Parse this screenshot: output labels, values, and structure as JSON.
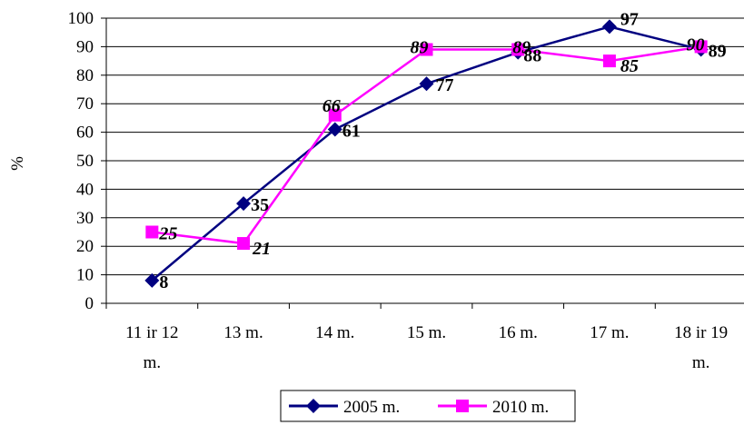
{
  "chart_data": {
    "type": "line",
    "title": "",
    "ylabel": "%",
    "xlabel": "",
    "ylim": [
      0,
      100
    ],
    "yticks": [
      0,
      10,
      20,
      30,
      40,
      50,
      60,
      70,
      80,
      90,
      100
    ],
    "categories": [
      [
        "11 ir 12",
        "m."
      ],
      [
        "13 m."
      ],
      [
        "14 m."
      ],
      [
        "15 m."
      ],
      [
        "16 m."
      ],
      [
        "17 m."
      ],
      [
        "18 ir 19",
        "m."
      ]
    ],
    "series": [
      {
        "name": "2005 m.",
        "values": [
          8,
          35,
          61,
          77,
          88,
          97,
          89
        ],
        "color": "#000080",
        "marker": "diamond",
        "label_style": "bold"
      },
      {
        "name": "2010 m.",
        "values": [
          25,
          21,
          66,
          89,
          89,
          85,
          90
        ],
        "color": "#ff00ff",
        "marker": "square",
        "label_style": "bold-italic"
      }
    ],
    "grid": true,
    "legend": "bottom"
  }
}
